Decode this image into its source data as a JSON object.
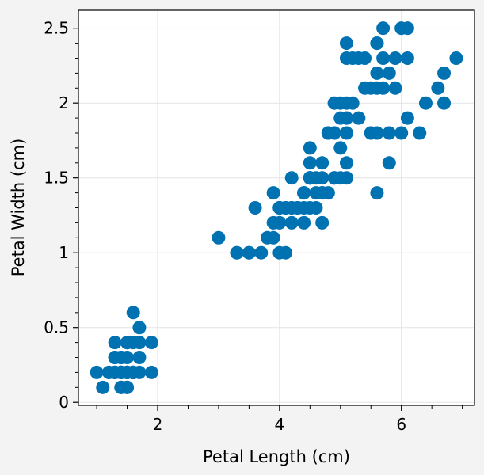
{
  "chart_data": {
    "type": "scatter",
    "title": "",
    "xlabel": "Petal Length (cm)",
    "ylabel": "Petal Width (cm)",
    "xlim": [
      0.7,
      7.2
    ],
    "ylim": [
      -0.02,
      2.62
    ],
    "xticks": [
      2,
      4,
      6
    ],
    "xtick_labels": [
      "2",
      "4",
      "6"
    ],
    "yticks": [
      0,
      0.5,
      1,
      1.5,
      2,
      2.5
    ],
    "ytick_labels": [
      "0",
      "0.5",
      "1",
      "1.5",
      "2",
      "2.5"
    ],
    "grid": true,
    "legend": "none",
    "colors": {
      "marker": "#0072b2",
      "background": "#f3f3f3",
      "plot_area": "#ffffff",
      "grid": "#e3e3e3"
    },
    "series": [
      {
        "points": [
          [
            1.4,
            0.2
          ],
          [
            1.4,
            0.2
          ],
          [
            1.3,
            0.2
          ],
          [
            1.5,
            0.2
          ],
          [
            1.4,
            0.2
          ],
          [
            1.7,
            0.4
          ],
          [
            1.4,
            0.3
          ],
          [
            1.5,
            0.2
          ],
          [
            1.4,
            0.2
          ],
          [
            1.5,
            0.1
          ],
          [
            1.5,
            0.2
          ],
          [
            1.6,
            0.2
          ],
          [
            1.4,
            0.1
          ],
          [
            1.1,
            0.1
          ],
          [
            1.2,
            0.2
          ],
          [
            1.5,
            0.4
          ],
          [
            1.3,
            0.4
          ],
          [
            1.4,
            0.3
          ],
          [
            1.7,
            0.3
          ],
          [
            1.5,
            0.3
          ],
          [
            1.7,
            0.2
          ],
          [
            1.5,
            0.4
          ],
          [
            1.0,
            0.2
          ],
          [
            1.7,
            0.5
          ],
          [
            1.9,
            0.2
          ],
          [
            1.6,
            0.2
          ],
          [
            1.6,
            0.4
          ],
          [
            1.5,
            0.2
          ],
          [
            1.4,
            0.2
          ],
          [
            1.6,
            0.2
          ],
          [
            1.6,
            0.2
          ],
          [
            1.5,
            0.4
          ],
          [
            1.5,
            0.1
          ],
          [
            1.4,
            0.2
          ],
          [
            1.5,
            0.2
          ],
          [
            1.2,
            0.2
          ],
          [
            1.3,
            0.2
          ],
          [
            1.4,
            0.1
          ],
          [
            1.3,
            0.2
          ],
          [
            1.5,
            0.2
          ],
          [
            1.3,
            0.3
          ],
          [
            1.3,
            0.3
          ],
          [
            1.3,
            0.2
          ],
          [
            1.6,
            0.6
          ],
          [
            1.9,
            0.4
          ],
          [
            1.4,
            0.3
          ],
          [
            1.6,
            0.2
          ],
          [
            1.4,
            0.2
          ],
          [
            1.5,
            0.2
          ],
          [
            1.4,
            0.2
          ],
          [
            4.7,
            1.4
          ],
          [
            4.5,
            1.5
          ],
          [
            4.9,
            1.5
          ],
          [
            4.0,
            1.3
          ],
          [
            4.6,
            1.5
          ],
          [
            4.5,
            1.3
          ],
          [
            4.7,
            1.6
          ],
          [
            3.3,
            1.0
          ],
          [
            4.6,
            1.3
          ],
          [
            3.9,
            1.4
          ],
          [
            3.5,
            1.0
          ],
          [
            4.2,
            1.5
          ],
          [
            4.0,
            1.0
          ],
          [
            4.7,
            1.4
          ],
          [
            3.6,
            1.3
          ],
          [
            4.4,
            1.4
          ],
          [
            4.5,
            1.5
          ],
          [
            4.1,
            1.0
          ],
          [
            4.5,
            1.5
          ],
          [
            3.9,
            1.1
          ],
          [
            4.8,
            1.8
          ],
          [
            4.0,
            1.3
          ],
          [
            4.9,
            1.5
          ],
          [
            4.7,
            1.2
          ],
          [
            4.3,
            1.3
          ],
          [
            4.4,
            1.4
          ],
          [
            4.8,
            1.4
          ],
          [
            5.0,
            1.7
          ],
          [
            4.5,
            1.5
          ],
          [
            3.5,
            1.0
          ],
          [
            3.8,
            1.1
          ],
          [
            3.7,
            1.0
          ],
          [
            3.9,
            1.2
          ],
          [
            5.1,
            1.6
          ],
          [
            4.5,
            1.5
          ],
          [
            4.5,
            1.6
          ],
          [
            4.7,
            1.5
          ],
          [
            4.4,
            1.3
          ],
          [
            4.1,
            1.3
          ],
          [
            4.0,
            1.3
          ],
          [
            4.4,
            1.2
          ],
          [
            4.6,
            1.4
          ],
          [
            4.0,
            1.2
          ],
          [
            3.3,
            1.0
          ],
          [
            4.2,
            1.3
          ],
          [
            4.2,
            1.2
          ],
          [
            4.2,
            1.3
          ],
          [
            4.3,
            1.3
          ],
          [
            3.0,
            1.1
          ],
          [
            4.1,
            1.3
          ],
          [
            6.0,
            2.5
          ],
          [
            5.1,
            1.9
          ],
          [
            5.9,
            2.1
          ],
          [
            5.6,
            1.8
          ],
          [
            5.8,
            2.2
          ],
          [
            6.6,
            2.1
          ],
          [
            4.5,
            1.7
          ],
          [
            6.3,
            1.8
          ],
          [
            5.8,
            1.8
          ],
          [
            6.1,
            2.5
          ],
          [
            5.1,
            2.0
          ],
          [
            5.3,
            1.9
          ],
          [
            5.5,
            2.1
          ],
          [
            5.0,
            2.0
          ],
          [
            5.1,
            2.4
          ],
          [
            5.3,
            2.3
          ],
          [
            5.5,
            1.8
          ],
          [
            6.7,
            2.2
          ],
          [
            6.9,
            2.3
          ],
          [
            5.0,
            1.5
          ],
          [
            5.7,
            2.3
          ],
          [
            4.9,
            2.0
          ],
          [
            6.7,
            2.0
          ],
          [
            4.9,
            1.8
          ],
          [
            5.7,
            2.1
          ],
          [
            6.0,
            1.8
          ],
          [
            4.8,
            1.8
          ],
          [
            4.9,
            1.8
          ],
          [
            5.6,
            2.1
          ],
          [
            5.8,
            1.6
          ],
          [
            6.1,
            1.9
          ],
          [
            6.4,
            2.0
          ],
          [
            5.6,
            2.2
          ],
          [
            5.1,
            1.5
          ],
          [
            5.6,
            1.4
          ],
          [
            6.1,
            2.3
          ],
          [
            5.6,
            2.4
          ],
          [
            5.5,
            1.8
          ],
          [
            4.8,
            1.8
          ],
          [
            5.4,
            2.1
          ],
          [
            5.6,
            2.4
          ],
          [
            5.1,
            2.3
          ],
          [
            5.1,
            1.9
          ],
          [
            5.9,
            2.3
          ],
          [
            5.7,
            2.5
          ],
          [
            5.2,
            2.3
          ],
          [
            5.0,
            1.9
          ],
          [
            5.2,
            2.0
          ],
          [
            5.4,
            2.3
          ],
          [
            5.1,
            1.8
          ]
        ]
      }
    ]
  }
}
